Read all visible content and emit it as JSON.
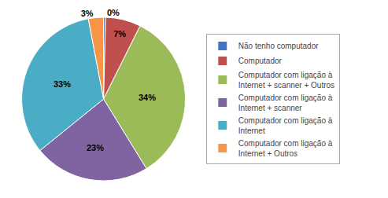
{
  "chart_data": {
    "type": "pie",
    "categories": [
      "Não tenho computador",
      "Computador",
      "Computador com ligação à\nInternet + scanner + Outros",
      "Computador com ligação à\nInternet + scanner",
      "Computador com ligação à\nInternet",
      "Computador com ligação à\nInternet + Outros"
    ],
    "values": [
      0.4,
      7,
      34,
      23,
      33,
      3
    ],
    "value_labels": [
      "0%",
      "7%",
      "34%",
      "23%",
      "33%",
      "3%"
    ],
    "colors": [
      "#4472C4",
      "#C0504D",
      "#9BBB59",
      "#8064A2",
      "#4BACC6",
      "#F79646"
    ],
    "data_labels": true,
    "legend": "right"
  }
}
